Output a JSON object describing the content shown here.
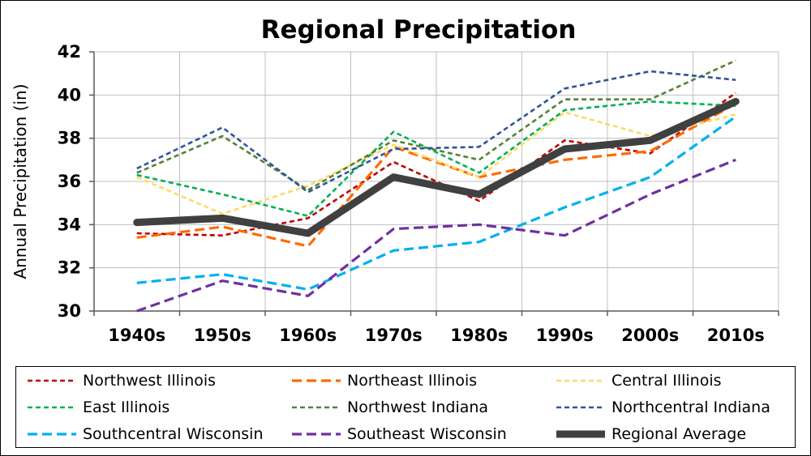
{
  "chart_data": {
    "type": "line",
    "title": "Regional Precipitation",
    "xlabel": "",
    "ylabel": "Annual Precipitation (in)",
    "categories": [
      "1940s",
      "1950s",
      "1960s",
      "1970s",
      "1980s",
      "1990s",
      "2000s",
      "2010s"
    ],
    "ylim": [
      30,
      42
    ],
    "yticks": [
      "30",
      "32",
      "34",
      "36",
      "38",
      "40",
      "42"
    ],
    "grid": true,
    "legend": "bottom",
    "series": [
      {
        "name": "Northwest Illinois",
        "color": "#c00000",
        "dash": "short",
        "values": [
          33.6,
          33.5,
          34.3,
          36.9,
          35.1,
          37.9,
          37.3,
          40.1
        ]
      },
      {
        "name": "Northeast Illinois",
        "color": "#ff6a00",
        "dash": "medium",
        "values": [
          33.4,
          33.9,
          33.0,
          37.6,
          36.2,
          37.0,
          37.4,
          39.6
        ]
      },
      {
        "name": "Central Illinois",
        "color": "#ffd966",
        "dash": "short",
        "values": [
          36.2,
          34.5,
          35.8,
          37.7,
          36.2,
          39.2,
          38.1,
          39.1
        ]
      },
      {
        "name": "East Illinois",
        "color": "#00b050",
        "dash": "short",
        "values": [
          36.3,
          35.4,
          34.4,
          38.3,
          36.4,
          39.3,
          39.7,
          39.5
        ]
      },
      {
        "name": "Northwest Indiana",
        "color": "#548235",
        "dash": "short",
        "values": [
          36.4,
          38.1,
          35.6,
          37.9,
          37.0,
          39.8,
          39.8,
          41.6
        ]
      },
      {
        "name": "Northcentral Indiana",
        "color": "#2f5597",
        "dash": "short",
        "values": [
          36.6,
          38.5,
          35.5,
          37.5,
          37.6,
          40.3,
          41.1,
          40.7
        ]
      },
      {
        "name": "Southcentral Wisconsin",
        "color": "#00b0f0",
        "dash": "medium",
        "values": [
          31.3,
          31.7,
          31.0,
          32.8,
          33.2,
          34.8,
          36.2,
          39.0
        ]
      },
      {
        "name": "Southeast Wisconsin",
        "color": "#7030a0",
        "dash": "medium",
        "values": [
          30.0,
          31.4,
          30.7,
          33.8,
          34.0,
          33.5,
          35.4,
          37.0
        ]
      },
      {
        "name": "Regional Average",
        "color": "#404040",
        "dash": "solid",
        "values": [
          34.1,
          34.3,
          33.6,
          36.2,
          35.4,
          37.5,
          37.9,
          39.7
        ]
      }
    ]
  }
}
